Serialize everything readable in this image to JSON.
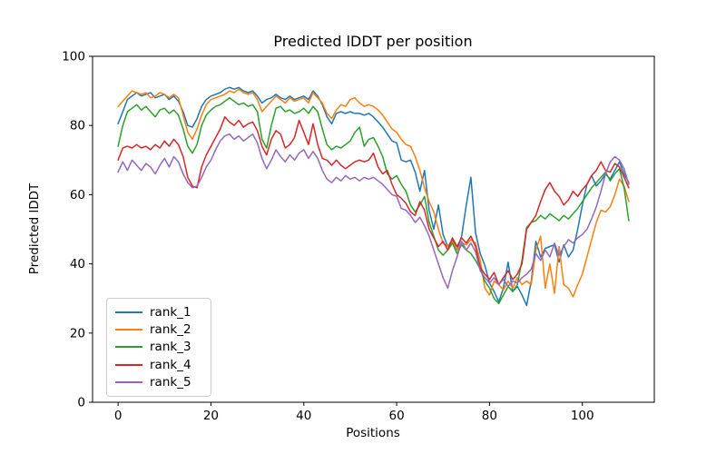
{
  "figure": {
    "title": "Predicted lDDT per position",
    "background_color": "#ffffff",
    "axes_edge_color": "#000000"
  },
  "chart_data": {
    "type": "line",
    "title": "Predicted lDDT per position",
    "xlabel": "Positions",
    "ylabel": "Predicted lDDT",
    "xlim": [
      -5.5,
      115.5
    ],
    "ylim": [
      0,
      100
    ],
    "x_ticks": [
      0,
      20,
      40,
      60,
      80,
      100
    ],
    "y_ticks": [
      0,
      20,
      40,
      60,
      80,
      100
    ],
    "grid": false,
    "legend_position": "lower left",
    "x_start": 0,
    "x_step": 1,
    "series": [
      {
        "name": "rank_1",
        "color": "#1f77b4",
        "values": [
          80.5,
          84,
          87.5,
          88.5,
          89.5,
          88.5,
          89,
          89.5,
          88,
          88.5,
          89,
          87.5,
          88.5,
          87,
          84,
          80,
          79.5,
          82,
          85.5,
          87.5,
          88.5,
          89,
          89.5,
          90.5,
          91,
          90.5,
          91,
          90,
          89.5,
          90,
          88.5,
          86.5,
          87.5,
          88,
          89,
          88,
          87.5,
          88.5,
          87.5,
          88,
          88.5,
          87.5,
          90,
          88.5,
          86,
          82.5,
          80.5,
          83.5,
          84,
          83.5,
          84,
          83.5,
          83.5,
          83,
          83.5,
          82.5,
          81,
          79.5,
          77.5,
          75.5,
          75,
          70,
          69.5,
          70,
          66.5,
          61,
          67,
          55.5,
          50,
          57,
          48.5,
          45,
          47,
          44,
          48,
          57,
          65,
          49,
          43,
          39.5,
          34.5,
          32,
          29,
          33,
          40.5,
          32,
          33.5,
          31,
          28,
          35,
          46.5,
          42,
          44.5,
          45,
          45.5,
          40.5,
          45.5,
          42,
          44,
          50,
          57,
          63,
          65.5,
          62.5,
          64,
          66,
          64.5,
          67,
          69.5,
          66,
          63.5
        ]
      },
      {
        "name": "rank_2",
        "color": "#ff7f0e",
        "values": [
          85.5,
          87,
          88.5,
          90,
          89.5,
          89,
          89.5,
          88,
          88.5,
          89.5,
          89,
          88,
          89,
          88,
          83,
          78,
          76,
          79,
          83,
          86,
          87.5,
          88,
          88.5,
          89,
          90,
          89.5,
          90.5,
          89.5,
          89,
          89.5,
          87.5,
          84,
          85.5,
          87,
          88.5,
          87.5,
          86.5,
          88,
          87,
          87.5,
          88,
          86.5,
          89.5,
          88,
          86.5,
          83.5,
          82,
          84.5,
          86,
          85.5,
          87.5,
          88,
          86.5,
          85.5,
          86,
          85.5,
          84.5,
          83,
          81,
          79,
          78,
          76,
          74.5,
          74,
          71,
          67,
          62,
          58,
          55,
          50,
          46,
          45,
          46.5,
          44,
          46,
          45.5,
          47,
          46,
          41,
          33,
          31,
          35,
          34,
          32.5,
          35,
          33,
          36,
          34,
          35,
          34,
          44,
          48,
          33,
          40,
          31.5,
          45,
          34,
          33,
          30.5,
          34,
          37,
          42,
          47,
          52,
          55.5,
          55,
          56.5,
          60,
          64.5,
          62.5,
          58
        ]
      },
      {
        "name": "rank_3",
        "color": "#2ca02c",
        "values": [
          74,
          80,
          84,
          85,
          86,
          84.5,
          85.5,
          84,
          82.5,
          84.5,
          85,
          83.5,
          84.5,
          83,
          79,
          74,
          72,
          74.5,
          80,
          83,
          84.5,
          85.5,
          86,
          87,
          88,
          87,
          86,
          86.5,
          85.5,
          86,
          84,
          76,
          73.5,
          80,
          85,
          85.5,
          84,
          84.5,
          83.5,
          84,
          85,
          83.5,
          85.5,
          84,
          79,
          74.5,
          73,
          74,
          73.5,
          74.5,
          75.5,
          78,
          79.5,
          74,
          76,
          76.5,
          74,
          71,
          66,
          64.5,
          65.5,
          63,
          61,
          57,
          55,
          57,
          59.5,
          52,
          48,
          44,
          42.5,
          44,
          46,
          43,
          45.5,
          44,
          43,
          41,
          38.5,
          35,
          33,
          30,
          28.5,
          31,
          33.5,
          32,
          34,
          41,
          50.5,
          52,
          52.5,
          54,
          53,
          54.5,
          53.5,
          52.5,
          54,
          53,
          54.5,
          56,
          58,
          60,
          62,
          63.5,
          65,
          66.5,
          64,
          66,
          67.5,
          62,
          52.5
        ]
      },
      {
        "name": "rank_4",
        "color": "#d62728",
        "values": [
          70,
          73.5,
          74,
          73.5,
          74.5,
          73.5,
          74,
          73,
          74.5,
          73.5,
          75.5,
          74,
          76,
          74.5,
          71,
          65,
          62.5,
          62,
          68,
          71.5,
          74,
          76.5,
          79,
          82.5,
          81,
          80,
          81.5,
          79.5,
          80.5,
          81,
          78.5,
          74,
          71.5,
          76,
          78.5,
          77.5,
          73.5,
          74.5,
          76.5,
          81.5,
          78,
          74.5,
          80.5,
          74.5,
          70.5,
          70,
          68.5,
          70,
          68.5,
          67.5,
          68.5,
          69.5,
          70,
          69.5,
          70,
          72,
          68,
          66,
          67,
          63,
          60,
          59,
          57.5,
          55,
          54,
          58,
          55.5,
          50,
          47.5,
          45,
          46.5,
          44,
          47.5,
          45,
          47.5,
          46,
          48,
          45,
          39,
          37,
          35.5,
          37.5,
          34,
          36,
          38,
          35.5,
          37,
          40,
          50,
          52,
          54,
          58,
          61.5,
          63.5,
          61,
          59.5,
          57,
          58.5,
          61,
          59.5,
          61.5,
          63,
          65.5,
          67,
          69.5,
          67,
          66.5,
          69,
          68,
          65,
          62
        ]
      },
      {
        "name": "rank_5",
        "color": "#9467bd",
        "values": [
          66.5,
          69.5,
          67,
          70,
          68.5,
          67,
          69,
          68,
          66,
          68.5,
          70.5,
          68,
          71,
          69.5,
          66,
          63.5,
          62,
          62.5,
          65,
          68,
          70,
          73,
          75.5,
          77,
          77.5,
          76,
          77,
          75.5,
          76.5,
          77.5,
          75,
          70.5,
          67.5,
          70,
          73,
          71,
          69.5,
          71.5,
          70,
          72,
          73,
          70.5,
          72.5,
          70.5,
          67,
          64.5,
          63.5,
          65,
          64,
          65.5,
          64.5,
          65,
          64,
          65,
          64.5,
          65,
          64,
          63,
          61.5,
          60,
          59.5,
          56,
          55.5,
          54,
          52,
          53.5,
          51,
          48,
          44,
          40,
          36,
          33,
          38,
          42,
          46.5,
          44,
          46,
          43.5,
          38,
          36,
          34.5,
          36,
          34,
          35.5,
          33.5,
          35,
          34.5,
          36,
          37,
          38.5,
          43,
          41,
          44,
          42,
          46,
          42.5,
          45,
          47,
          46,
          47.5,
          48.5,
          50,
          53,
          56.5,
          61,
          66,
          69.5,
          71,
          70,
          67.5,
          63
        ]
      }
    ]
  }
}
